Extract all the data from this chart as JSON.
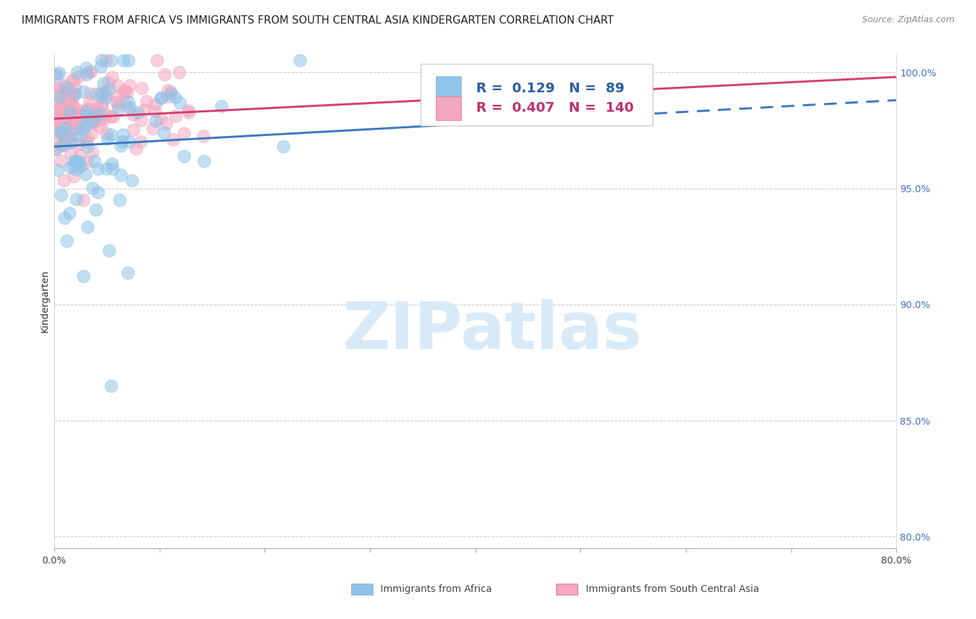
{
  "title": "IMMIGRANTS FROM AFRICA VS IMMIGRANTS FROM SOUTH CENTRAL ASIA KINDERGARTEN CORRELATION CHART",
  "source": "Source: ZipAtlas.com",
  "ylabel": "Kindergarten",
  "xlim": [
    0.0,
    0.8
  ],
  "ylim": [
    0.795,
    1.008
  ],
  "color_africa": "#8fc4e8",
  "color_asia": "#f4a8c0",
  "color_africa_line": "#3a7abf",
  "color_asia_line": "#d44070",
  "tick_color_right": "#4472c4",
  "legend_R_africa": "0.129",
  "legend_N_africa": "89",
  "legend_R_asia": "0.407",
  "legend_N_asia": "140",
  "legend_label_africa": "Immigrants from Africa",
  "legend_label_asia": "Immigrants from South Central Asia",
  "title_fontsize": 11,
  "source_fontsize": 9,
  "axis_label_fontsize": 10,
  "tick_fontsize": 10,
  "watermark_text": "ZIPatlas",
  "watermark_color": "#d8eaf8",
  "background_color": "#ffffff"
}
